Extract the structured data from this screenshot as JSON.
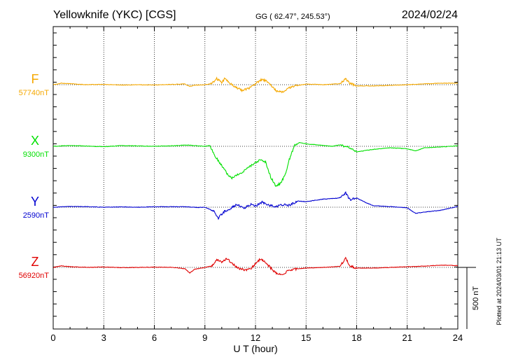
{
  "header": {
    "station": "Yellowknife (YKC)  [CGS]",
    "coords": "GG ( 62.47°, 245.53°)",
    "date": "2024/02/24"
  },
  "footer": {
    "plotted": "Plotted at 2024/03/01 21:13 UT",
    "scale_label": "500 nT"
  },
  "chart_data": {
    "type": "line",
    "xlabel": "U T (hour)",
    "xlim": [
      0,
      24
    ],
    "xticks": [
      0,
      3,
      6,
      9,
      12,
      15,
      18,
      21,
      24
    ],
    "scale_bar_nT": 500,
    "series": [
      {
        "name": "F",
        "baseline_label": "57740nT",
        "baseline_nT": 57740,
        "color": "#f5a800",
        "points": [
          [
            0,
            0
          ],
          [
            0.5,
            -12
          ],
          [
            1,
            -8
          ],
          [
            2,
            0
          ],
          [
            3,
            -3
          ],
          [
            4,
            3
          ],
          [
            5,
            0
          ],
          [
            6,
            2
          ],
          [
            7,
            -2
          ],
          [
            7.8,
            -6
          ],
          [
            8.1,
            14
          ],
          [
            8.4,
            4
          ],
          [
            9,
            0
          ],
          [
            9.4,
            -8
          ],
          [
            9.7,
            -48
          ],
          [
            10,
            -20
          ],
          [
            10.2,
            -52
          ],
          [
            10.5,
            -12
          ],
          [
            10.8,
            18
          ],
          [
            11.2,
            45
          ],
          [
            11.6,
            30
          ],
          [
            12,
            -10
          ],
          [
            12.4,
            -45
          ],
          [
            12.7,
            -25
          ],
          [
            13,
            20
          ],
          [
            13.3,
            55
          ],
          [
            13.6,
            60
          ],
          [
            13.9,
            30
          ],
          [
            14.3,
            10
          ],
          [
            15,
            -5
          ],
          [
            16,
            0
          ],
          [
            17,
            -8
          ],
          [
            17.35,
            -45
          ],
          [
            17.6,
            -12
          ],
          [
            18,
            10
          ],
          [
            19,
            10
          ],
          [
            20,
            6
          ],
          [
            21,
            0
          ],
          [
            22,
            -6
          ],
          [
            23,
            -12
          ],
          [
            24,
            -12
          ]
        ]
      },
      {
        "name": "X",
        "baseline_label": "9300nT",
        "baseline_nT": 9300,
        "color": "#00e000",
        "points": [
          [
            0,
            0
          ],
          [
            1,
            -6
          ],
          [
            2,
            -2
          ],
          [
            3,
            3
          ],
          [
            4,
            -5
          ],
          [
            5,
            -3
          ],
          [
            6,
            0
          ],
          [
            7,
            -4
          ],
          [
            8,
            -10
          ],
          [
            8.6,
            -3
          ],
          [
            9,
            0
          ],
          [
            9.3,
            -6
          ],
          [
            9.6,
            80
          ],
          [
            10,
            155
          ],
          [
            10.3,
            220
          ],
          [
            10.6,
            260
          ],
          [
            10.9,
            230
          ],
          [
            11.2,
            210
          ],
          [
            11.6,
            170
          ],
          [
            12,
            135
          ],
          [
            12.3,
            105
          ],
          [
            12.6,
            130
          ],
          [
            12.9,
            250
          ],
          [
            13.2,
            320
          ],
          [
            13.5,
            300
          ],
          [
            13.8,
            220
          ],
          [
            14,
            110
          ],
          [
            14.3,
            -5
          ],
          [
            14.6,
            -30
          ],
          [
            15,
            -20
          ],
          [
            15.8,
            -10
          ],
          [
            16.5,
            0
          ],
          [
            17,
            -10
          ],
          [
            17.5,
            6
          ],
          [
            18,
            45
          ],
          [
            18.5,
            35
          ],
          [
            19,
            25
          ],
          [
            20,
            12
          ],
          [
            21,
            20
          ],
          [
            21.5,
            38
          ],
          [
            22,
            12
          ],
          [
            23,
            5
          ],
          [
            24,
            -4
          ]
        ]
      },
      {
        "name": "Y",
        "baseline_label": "2590nT",
        "baseline_nT": 2590,
        "color": "#0000d0",
        "points": [
          [
            0,
            0
          ],
          [
            1,
            -6
          ],
          [
            2,
            -4
          ],
          [
            3,
            0
          ],
          [
            4,
            -2
          ],
          [
            5,
            0
          ],
          [
            6,
            -3
          ],
          [
            7,
            -4
          ],
          [
            8,
            -3
          ],
          [
            8.5,
            2
          ],
          [
            9,
            0
          ],
          [
            9.5,
            30
          ],
          [
            9.8,
            90
          ],
          [
            10.1,
            40
          ],
          [
            10.5,
            10
          ],
          [
            10.9,
            -20
          ],
          [
            11.3,
            8
          ],
          [
            11.7,
            -22
          ],
          [
            12,
            -12
          ],
          [
            12.4,
            -40
          ],
          [
            12.8,
            -18
          ],
          [
            13.2,
            0
          ],
          [
            13.6,
            -22
          ],
          [
            14,
            -15
          ],
          [
            14.5,
            -50
          ],
          [
            15,
            -45
          ],
          [
            16,
            -65
          ],
          [
            17,
            -75
          ],
          [
            17.35,
            -115
          ],
          [
            17.6,
            -60
          ],
          [
            18,
            -75
          ],
          [
            18.5,
            -40
          ],
          [
            19,
            -12
          ],
          [
            20,
            -5
          ],
          [
            21,
            5
          ],
          [
            21.5,
            50
          ],
          [
            22,
            40
          ],
          [
            23,
            25
          ],
          [
            24,
            -6
          ]
        ]
      },
      {
        "name": "Z",
        "baseline_label": "56920nT",
        "baseline_nT": 56920,
        "color": "#e00000",
        "points": [
          [
            0,
            0
          ],
          [
            0.5,
            -12
          ],
          [
            1,
            -6
          ],
          [
            2,
            0
          ],
          [
            3,
            -3
          ],
          [
            4,
            2
          ],
          [
            5,
            0
          ],
          [
            6,
            -2
          ],
          [
            7,
            0
          ],
          [
            7.8,
            10
          ],
          [
            8.1,
            45
          ],
          [
            8.4,
            15
          ],
          [
            9,
            0
          ],
          [
            9.4,
            -12
          ],
          [
            9.7,
            -65
          ],
          [
            10,
            -45
          ],
          [
            10.3,
            -70
          ],
          [
            10.6,
            -35
          ],
          [
            10.9,
            0
          ],
          [
            11.3,
            20
          ],
          [
            11.7,
            15
          ],
          [
            12,
            -30
          ],
          [
            12.3,
            -70
          ],
          [
            12.6,
            -40
          ],
          [
            13,
            20
          ],
          [
            13.3,
            55
          ],
          [
            13.6,
            60
          ],
          [
            13.9,
            30
          ],
          [
            14.3,
            15
          ],
          [
            15,
            5
          ],
          [
            16,
            0
          ],
          [
            17,
            -8
          ],
          [
            17.35,
            -75
          ],
          [
            17.6,
            -10
          ],
          [
            18,
            5
          ],
          [
            19,
            5
          ],
          [
            20,
            0
          ],
          [
            21,
            -5
          ],
          [
            22,
            -10
          ],
          [
            23,
            -18
          ],
          [
            24,
            -14
          ]
        ]
      }
    ]
  }
}
